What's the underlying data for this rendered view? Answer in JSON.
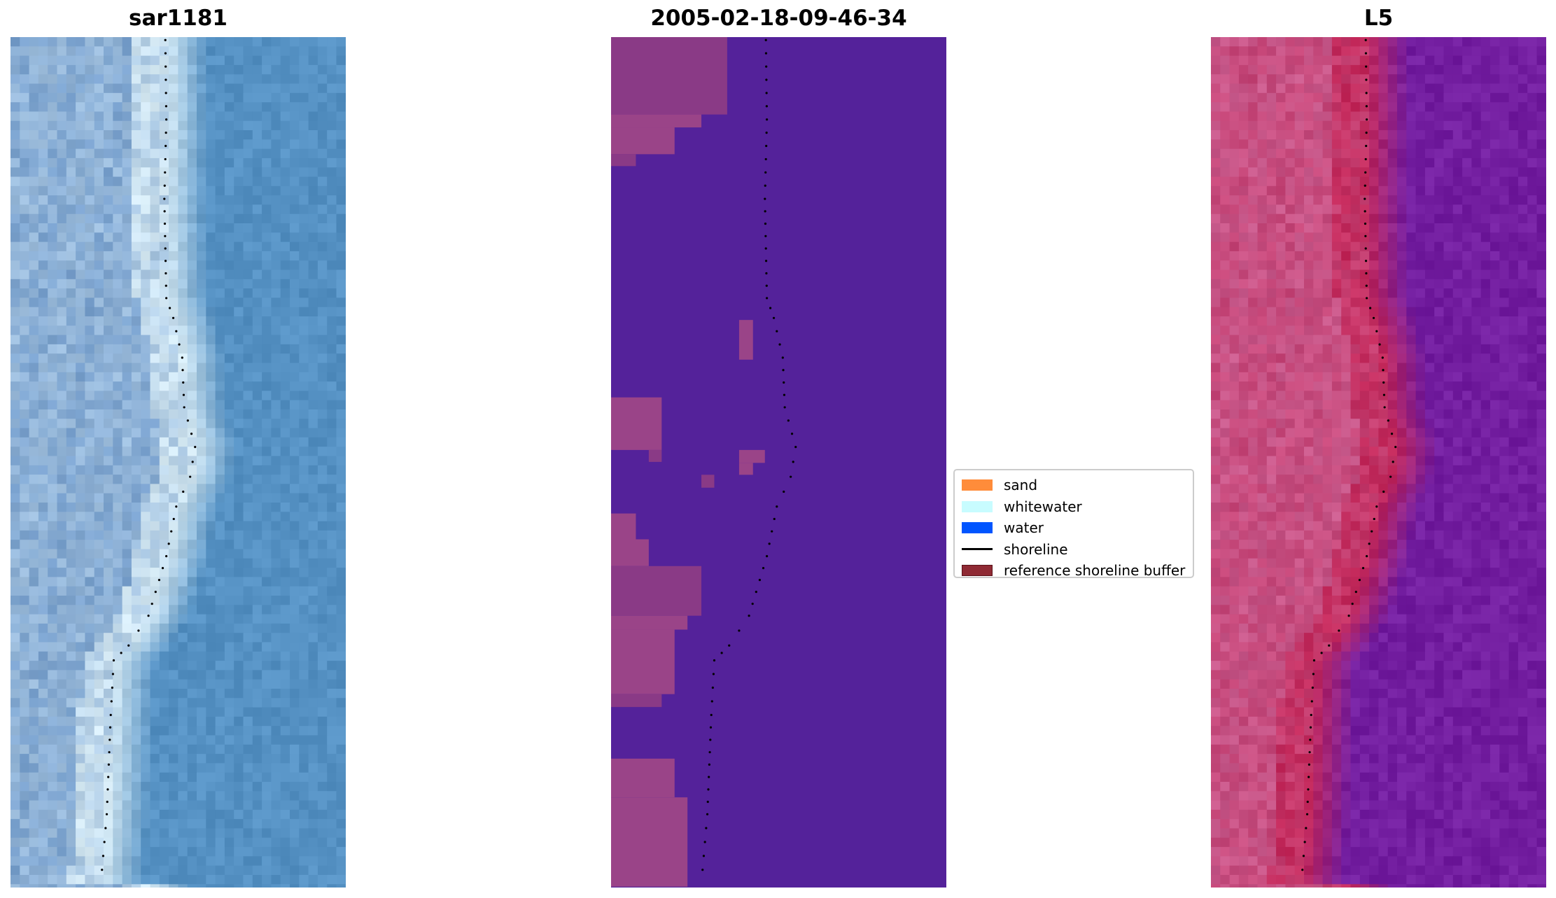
{
  "chart_data": {
    "type": "image-panels",
    "panels": [
      {
        "title": "sar1181"
      },
      {
        "title": "2005-02-18-09-46-34"
      },
      {
        "title": "L5"
      }
    ],
    "legend": {
      "placement": "center",
      "entries": [
        {
          "label": "sand",
          "color": "#ff8c3a"
        },
        {
          "label": "whitewater",
          "color": "#c8fcff"
        },
        {
          "label": "water",
          "color": "#0055ff"
        },
        {
          "label": "shoreline",
          "color": "#000000",
          "style": "line"
        },
        {
          "label": "reference shoreline buffer",
          "color": "#8f2a34"
        }
      ]
    }
  }
}
